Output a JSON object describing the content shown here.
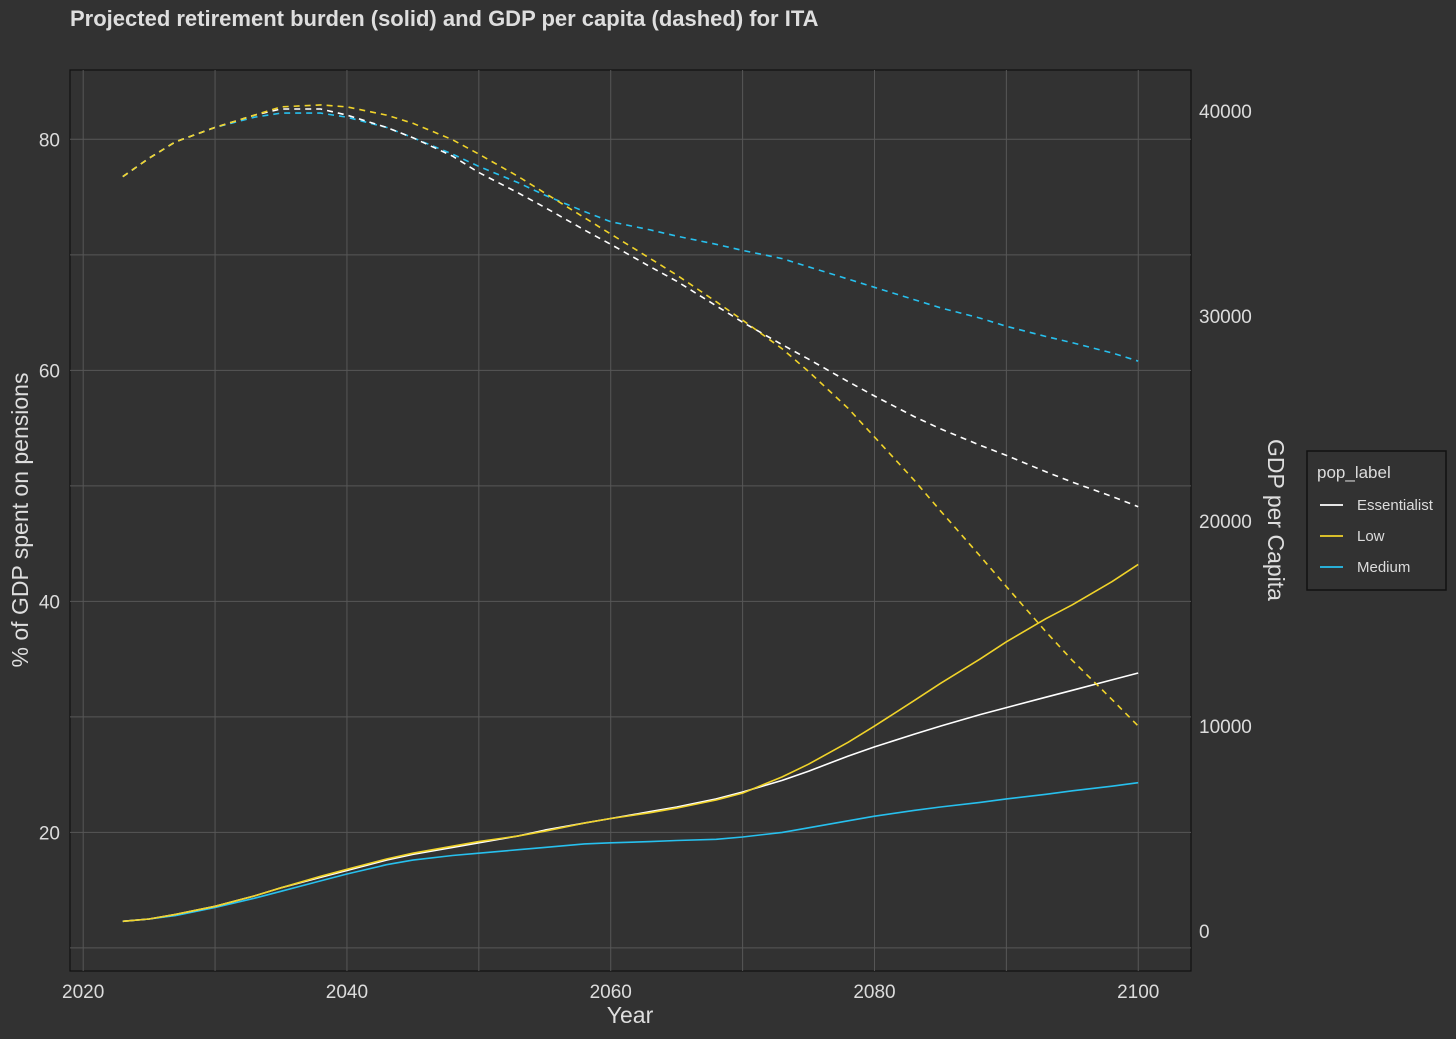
{
  "chart_data": {
    "type": "line",
    "title": "Projected retirement burden (solid) and GDP per capita (dashed) for ITA",
    "xlabel": "Year",
    "ylabel": "% of GDP spent on pensions",
    "y2label": "GDP per Capita",
    "xlim": [
      2019,
      2104
    ],
    "ylim": [
      8,
      86
    ],
    "y2lim": [
      -1950,
      42000
    ],
    "x_ticks": [
      2020,
      2040,
      2060,
      2080,
      2100
    ],
    "y_ticks": [
      20,
      40,
      60,
      80
    ],
    "y2_ticks": [
      0,
      10000,
      20000,
      30000,
      40000
    ],
    "legend": {
      "title": "pop_label",
      "position": "right"
    },
    "x": [
      2023,
      2025,
      2027,
      2030,
      2033,
      2035,
      2038,
      2040,
      2043,
      2045,
      2048,
      2050,
      2053,
      2055,
      2058,
      2060,
      2063,
      2065,
      2068,
      2070,
      2073,
      2075,
      2078,
      2080,
      2083,
      2085,
      2088,
      2090,
      2093,
      2095,
      2098,
      2100
    ],
    "series": [
      {
        "name": "Essentialist",
        "color": "#ffffff",
        "pension": [
          12.3,
          12.5,
          12.9,
          13.6,
          14.5,
          15.2,
          16.1,
          16.7,
          17.6,
          18.1,
          18.7,
          19.1,
          19.7,
          20.2,
          20.8,
          21.2,
          21.8,
          22.2,
          22.9,
          23.5,
          24.5,
          25.3,
          26.6,
          27.4,
          28.5,
          29.2,
          30.2,
          30.8,
          31.7,
          32.3,
          33.2,
          33.8
        ],
        "gdp": [
          36800,
          37700,
          38500,
          39200,
          39800,
          40100,
          40100,
          39800,
          39200,
          38700,
          37800,
          37000,
          36000,
          35300,
          34200,
          33500,
          32400,
          31700,
          30500,
          29700,
          28600,
          27900,
          26800,
          26100,
          25100,
          24500,
          23700,
          23200,
          22400,
          21900,
          21200,
          20700
        ]
      },
      {
        "name": "Low",
        "color": "#f0d32a",
        "pension": [
          12.3,
          12.5,
          12.9,
          13.6,
          14.5,
          15.2,
          16.2,
          16.8,
          17.7,
          18.2,
          18.8,
          19.2,
          19.7,
          20.1,
          20.8,
          21.2,
          21.7,
          22.1,
          22.8,
          23.4,
          24.8,
          25.9,
          27.8,
          29.2,
          31.4,
          32.9,
          35.0,
          36.5,
          38.5,
          39.7,
          41.7,
          43.2
        ],
        "gdp": [
          36800,
          37700,
          38500,
          39200,
          39800,
          40200,
          40300,
          40200,
          39800,
          39400,
          38600,
          37900,
          36800,
          36000,
          34800,
          34000,
          32800,
          32000,
          30700,
          29800,
          28400,
          27300,
          25500,
          24100,
          22000,
          20500,
          18300,
          16800,
          14600,
          13200,
          11300,
          10000
        ]
      },
      {
        "name": "Medium",
        "color": "#27c0ee",
        "pension": [
          12.3,
          12.5,
          12.8,
          13.5,
          14.3,
          14.9,
          15.8,
          16.4,
          17.2,
          17.6,
          18.0,
          18.2,
          18.5,
          18.7,
          19.0,
          19.1,
          19.2,
          19.3,
          19.4,
          19.6,
          20.0,
          20.4,
          21.0,
          21.4,
          21.9,
          22.2,
          22.6,
          22.9,
          23.3,
          23.6,
          24.0,
          24.3
        ],
        "gdp": [
          36800,
          37700,
          38500,
          39200,
          39700,
          39900,
          39900,
          39700,
          39200,
          38700,
          37900,
          37300,
          36500,
          35900,
          35100,
          34600,
          34200,
          33900,
          33500,
          33200,
          32800,
          32400,
          31800,
          31400,
          30800,
          30400,
          29900,
          29500,
          29000,
          28700,
          28200,
          27800
        ]
      }
    ]
  }
}
